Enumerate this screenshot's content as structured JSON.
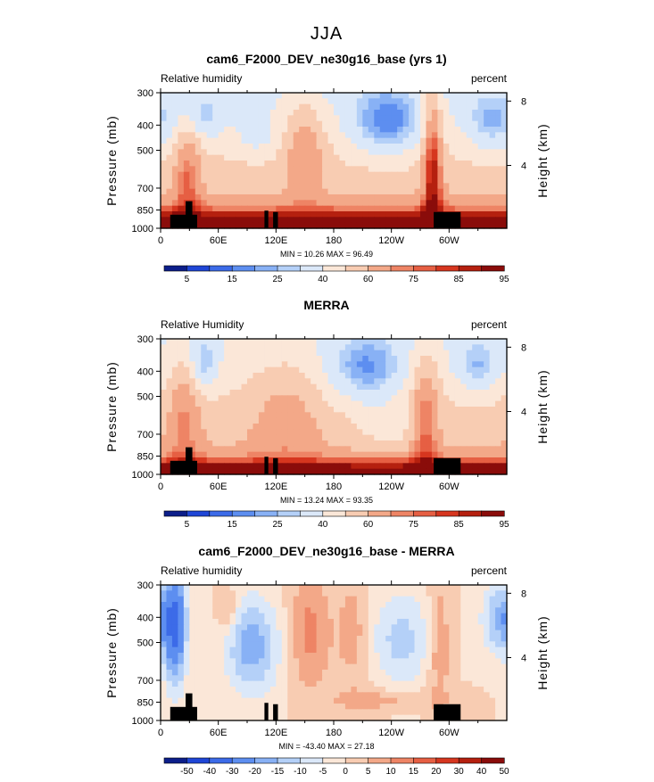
{
  "figure": {
    "suptitle": "JJA",
    "colors": {
      "rh_levels": [
        "#0c1e8a",
        "#1f46d6",
        "#3c6be8",
        "#5d8ef0",
        "#88b1f5",
        "#b4d0f8",
        "#dbe8f9",
        "#fbe7d8",
        "#f8ccb2",
        "#f3a888",
        "#ee8465",
        "#e65f43",
        "#d6361f",
        "#b5200f",
        "#8a0c0a"
      ],
      "terrain": "#000000"
    },
    "zonal_labels": {
      "xticks": [
        "0",
        "60E",
        "120E",
        "180",
        "120W",
        "60W"
      ],
      "yticks": [
        "300",
        "400",
        "500",
        "700",
        "850",
        "1000"
      ],
      "rticks": [
        "8",
        "4"
      ],
      "xlabel": "",
      "ylabel": "Pressure (mb)",
      "rlabel": "Height (km)"
    }
  },
  "chart_data": [
    {
      "type": "heatmap",
      "title": "cam6_F2000_DEV_ne30g16_base (yrs 1)",
      "left_label": "Relative humidity",
      "right_label": "percent",
      "minmax_text": "MIN =   10.26   MAX =   96.49",
      "min": 10.26,
      "max": 96.49,
      "x_range": [
        0,
        360
      ],
      "x_ticks": [
        0,
        60,
        120,
        180,
        240,
        300
      ],
      "y_ticks_mb": [
        300,
        400,
        500,
        700,
        850,
        1000
      ],
      "height_ticks_km": [
        8,
        4
      ],
      "colorbar_levels": [
        5,
        10,
        15,
        20,
        25,
        30,
        40,
        50,
        60,
        70,
        75,
        80,
        85,
        90,
        95
      ],
      "colorbar_labels": [
        "5",
        "15",
        "25",
        "40",
        "60",
        "75",
        "85",
        "95"
      ],
      "terrain": "black boxes at the bottom near 10-40E, 110-125E and 285-310E"
    },
    {
      "type": "heatmap",
      "title": "MERRA",
      "left_label": "Relative Humidity",
      "right_label": "percent",
      "minmax_text": "MIN =   13.24   MAX =   93.35",
      "min": 13.24,
      "max": 93.35,
      "x_range": [
        0,
        360
      ],
      "x_ticks": [
        0,
        60,
        120,
        180,
        240,
        300
      ],
      "y_ticks_mb": [
        300,
        400,
        500,
        700,
        850,
        1000
      ],
      "height_ticks_km": [
        8,
        4
      ],
      "colorbar_levels": [
        5,
        10,
        15,
        20,
        25,
        30,
        40,
        50,
        60,
        70,
        75,
        80,
        85,
        90,
        95
      ],
      "colorbar_labels": [
        "5",
        "15",
        "25",
        "40",
        "60",
        "75",
        "85",
        "95"
      ]
    },
    {
      "type": "heatmap",
      "title": "cam6_F2000_DEV_ne30g16_base - MERRA",
      "left_label": "Relative humidity",
      "right_label": "percent",
      "minmax_text": "MIN = -43.40   MAX =   27.18",
      "min": -43.4,
      "max": 27.18,
      "x_range": [
        0,
        360
      ],
      "x_ticks": [
        0,
        60,
        120,
        180,
        240,
        300
      ],
      "y_ticks_mb": [
        300,
        400,
        500,
        700,
        850,
        1000
      ],
      "height_ticks_km": [
        8,
        4
      ],
      "colorbar_levels": [
        -50,
        -40,
        -30,
        -20,
        -15,
        -10,
        -5,
        0,
        5,
        10,
        15,
        20,
        30,
        40,
        50
      ],
      "colorbar_labels": [
        "-50",
        "-40",
        "-30",
        "-20",
        "-15",
        "-10",
        "-5",
        "0",
        "5",
        "10",
        "15",
        "20",
        "30",
        "40",
        "50"
      ]
    }
  ]
}
